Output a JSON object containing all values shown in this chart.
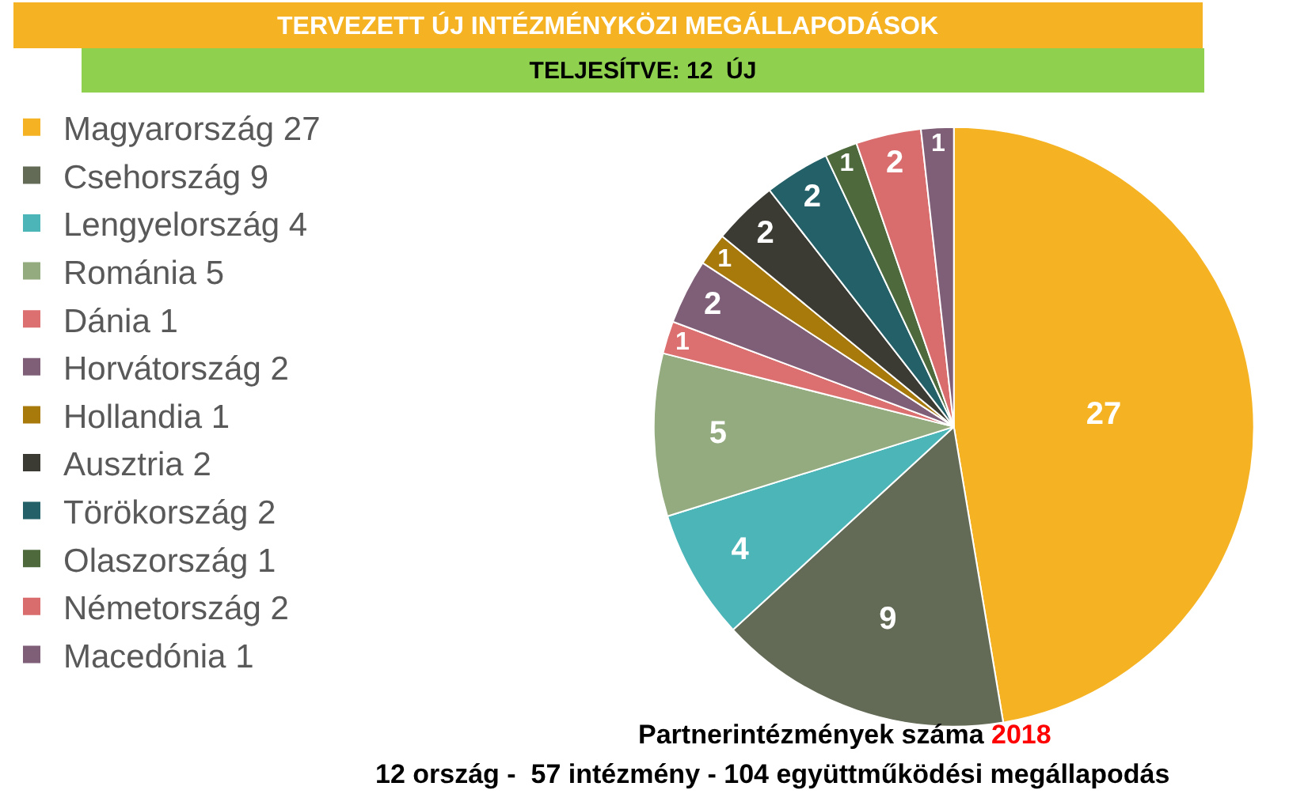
{
  "chart_data": {
    "type": "pie",
    "title": "TERVEZETT ÚJ INTÉZMÉNYKÖZI MEGÁLLAPODÁSOK",
    "subtitle": "TELJESÍTVE: 12  ÚJ",
    "categories": [
      "Magyarország 27",
      "Csehország 9",
      "Lengyelország 4",
      "Románia 5",
      "Dánia 1",
      "Horvátország 2",
      "Hollandia 1",
      "Ausztria 2",
      "Törökország 2",
      "Olaszország 1",
      "Németország 2",
      "Macedónia 1"
    ],
    "values": [
      27,
      9,
      4,
      5,
      1,
      2,
      1,
      2,
      2,
      1,
      2,
      1
    ],
    "colors": [
      "#f5b324",
      "#636b56",
      "#4bb5b8",
      "#93ab7e",
      "#dc6f6f",
      "#7f5f78",
      "#a87a0c",
      "#3b3b33",
      "#236068",
      "#4e6a3d",
      "#d96c6c",
      "#7f5f78"
    ],
    "data_labels": true,
    "legend": "left",
    "annotations": [
      "Partnerintézmények száma 2018",
      "12 ország -  57 intézmény - 104 együttműködési megállapodás"
    ]
  }
}
